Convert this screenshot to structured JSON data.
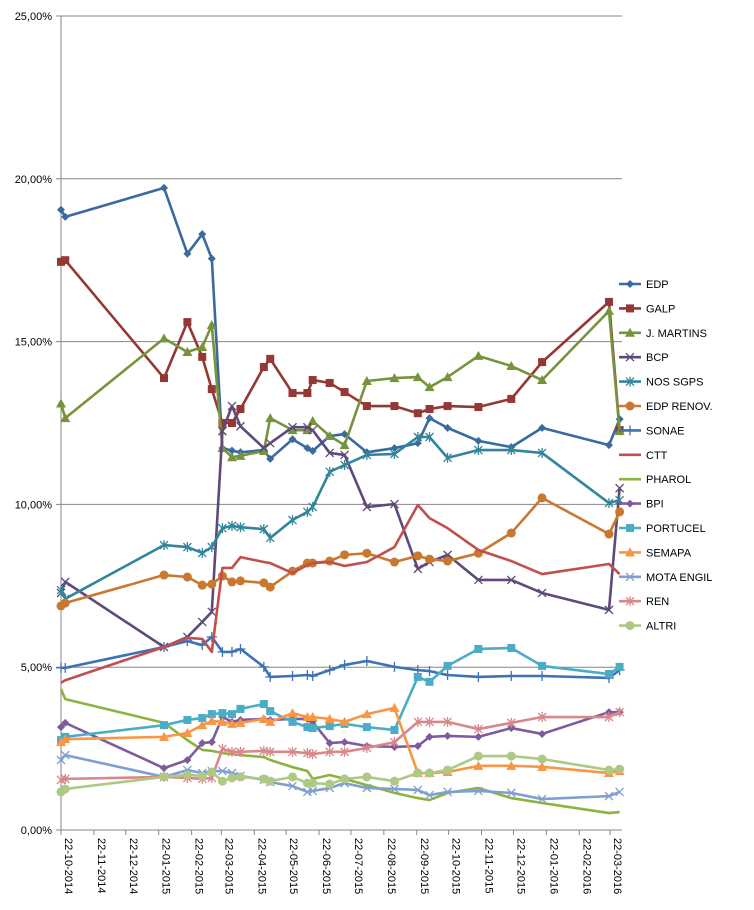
{
  "chart_data": {
    "type": "line",
    "title": "",
    "xlabel": "",
    "ylabel": "",
    "ylim": [
      0,
      25
    ],
    "grid": true,
    "legend_position": "right",
    "y_ticks": [
      0,
      5,
      10,
      15,
      20,
      25
    ],
    "y_tick_labels": [
      "0,00%",
      "5,00%",
      "10,00%",
      "15,00%",
      "20,00%",
      "25,00%"
    ],
    "x_tick_dates": [
      "2014-10-22",
      "2014-11-22",
      "2014-12-22",
      "2015-01-22",
      "2015-02-22",
      "2015-03-22",
      "2015-04-22",
      "2015-05-22",
      "2015-06-22",
      "2015-07-22",
      "2015-08-22",
      "2015-09-22",
      "2015-10-22",
      "2015-11-22",
      "2015-12-22",
      "2016-01-22",
      "2016-02-22",
      "2016-03-22"
    ],
    "x_tick_labels": [
      "22-10-2014",
      "22-11-2014",
      "22-12-2014",
      "22-01-2015",
      "22-02-2015",
      "22-03-2015",
      "22-04-2015",
      "22-05-2015",
      "22-06-2015",
      "22-07-2015",
      "22-08-2015",
      "22-09-2015",
      "22-10-2015",
      "22-11-2015",
      "22-12-2015",
      "22-01-2016",
      "22-02-2016",
      "22-03-2016"
    ],
    "x": [
      "2014-10-22",
      "2014-10-26",
      "2015-01-27",
      "2015-02-18",
      "2015-03-04",
      "2015-03-13",
      "2015-03-23",
      "2015-04-01",
      "2015-04-09",
      "2015-05-01",
      "2015-05-07",
      "2015-05-28",
      "2015-06-11",
      "2015-06-16",
      "2015-07-02",
      "2015-07-16",
      "2015-08-06",
      "2015-09-01",
      "2015-09-23",
      "2015-10-04",
      "2015-10-21",
      "2015-11-19",
      "2015-12-20",
      "2016-01-18",
      "2016-03-21",
      "2016-03-31"
    ],
    "series": [
      {
        "name": "EDP",
        "color": "#3a6aa0",
        "marker": "diamond",
        "values": [
          19.05,
          18.83,
          19.72,
          17.7,
          18.3,
          17.55,
          11.73,
          11.65,
          11.6,
          11.67,
          11.4,
          12.0,
          11.73,
          11.64,
          12.1,
          12.16,
          11.6,
          11.73,
          11.88,
          12.65,
          12.35,
          11.95,
          11.76,
          12.35,
          11.82,
          12.62
        ]
      },
      {
        "name": "GALP",
        "color": "#953735",
        "marker": "square",
        "values": [
          17.45,
          17.5,
          13.88,
          15.6,
          14.53,
          13.54,
          12.5,
          12.5,
          12.93,
          14.22,
          14.47,
          13.42,
          13.42,
          13.82,
          13.73,
          13.45,
          13.02,
          13.02,
          12.8,
          12.93,
          13.02,
          12.99,
          13.24,
          14.37,
          16.22,
          12.28
        ]
      },
      {
        "name": "J. MARTINS",
        "color": "#77933c",
        "marker": "triangle",
        "values": [
          13.1,
          12.65,
          15.1,
          14.68,
          14.83,
          15.51,
          11.73,
          11.45,
          11.49,
          11.64,
          12.65,
          12.28,
          12.28,
          12.56,
          12.1,
          11.82,
          13.79,
          13.88,
          13.91,
          13.6,
          13.91,
          14.56,
          14.25,
          13.82,
          15.94,
          12.25
        ]
      },
      {
        "name": "BCP",
        "color": "#5f497a",
        "marker": "x",
        "values": [
          7.28,
          7.62,
          5.62,
          5.93,
          6.39,
          6.7,
          12.25,
          13.02,
          12.4,
          11.73,
          11.88,
          12.37,
          12.37,
          12.28,
          11.58,
          11.52,
          9.92,
          10.01,
          8.02,
          8.23,
          8.45,
          7.68,
          7.68,
          7.28,
          6.76,
          10.5
        ]
      },
      {
        "name": "NOS SGPS",
        "color": "#31859c",
        "marker": "asterisk",
        "values": [
          7.37,
          7.1,
          8.75,
          8.69,
          8.51,
          8.69,
          9.27,
          9.34,
          9.3,
          9.24,
          8.97,
          9.52,
          9.77,
          9.92,
          11.0,
          11.21,
          11.52,
          11.55,
          12.07,
          12.07,
          11.43,
          11.67,
          11.67,
          11.58,
          10.04,
          10.13
        ]
      },
      {
        "name": "EDP RENOV.",
        "color": "#c8782f",
        "marker": "circle",
        "values": [
          6.88,
          6.97,
          7.83,
          7.77,
          7.52,
          7.55,
          7.8,
          7.62,
          7.65,
          7.59,
          7.46,
          7.95,
          8.2,
          8.2,
          8.26,
          8.45,
          8.5,
          8.23,
          8.42,
          8.32,
          8.26,
          8.5,
          9.12,
          10.2,
          9.09,
          9.77
        ]
      },
      {
        "name": "SONAE",
        "color": "#3d72b4",
        "marker": "plus",
        "values": [
          4.98,
          4.98,
          5.62,
          5.8,
          5.68,
          5.93,
          5.47,
          5.47,
          5.56,
          5.01,
          4.7,
          4.73,
          4.76,
          4.73,
          4.91,
          5.07,
          5.19,
          5.01,
          4.91,
          4.88,
          4.76,
          4.7,
          4.73,
          4.73,
          4.67,
          4.91
        ]
      },
      {
        "name": "CTT",
        "color": "#c0504d",
        "marker": "none",
        "values": [
          4.52,
          4.6,
          5.62,
          5.9,
          5.87,
          5.47,
          8.05,
          8.05,
          8.38,
          8.23,
          8.2,
          7.89,
          8.14,
          8.2,
          8.23,
          8.11,
          8.23,
          8.69,
          9.98,
          9.58,
          9.27,
          8.6,
          8.26,
          7.86,
          8.17,
          7.86
        ]
      },
      {
        "name": "PHAROL",
        "color": "#8db33f",
        "marker": "none",
        "values": [
          4.33,
          4.02,
          3.29,
          2.76,
          2.46,
          2.43,
          2.36,
          2.33,
          2.3,
          2.24,
          2.15,
          1.93,
          1.81,
          1.57,
          1.69,
          1.57,
          1.38,
          1.14,
          0.98,
          0.92,
          1.14,
          1.29,
          0.98,
          0.83,
          0.52,
          0.55
        ]
      },
      {
        "name": "BPI",
        "color": "#7f5a9f",
        "marker": "diamond",
        "values": [
          3.16,
          3.29,
          1.9,
          2.15,
          2.67,
          2.7,
          3.47,
          3.32,
          3.38,
          3.41,
          3.38,
          3.41,
          3.41,
          3.32,
          2.67,
          2.7,
          2.58,
          2.55,
          2.58,
          2.86,
          2.89,
          2.86,
          3.13,
          2.95,
          3.62,
          3.62
        ]
      },
      {
        "name": "PORTUCEL",
        "color": "#4bacc6",
        "marker": "square",
        "values": [
          2.76,
          2.86,
          3.22,
          3.38,
          3.44,
          3.56,
          3.59,
          3.56,
          3.72,
          3.87,
          3.65,
          3.32,
          3.16,
          3.13,
          3.19,
          3.26,
          3.16,
          3.07,
          4.7,
          4.55,
          5.04,
          5.56,
          5.59,
          5.04,
          4.79,
          5.01
        ]
      },
      {
        "name": "SEMAPA",
        "color": "#f79646",
        "marker": "triangle",
        "values": [
          2.7,
          2.79,
          2.86,
          2.98,
          3.22,
          3.35,
          3.32,
          3.26,
          3.29,
          3.41,
          3.32,
          3.59,
          3.47,
          3.47,
          3.41,
          3.32,
          3.56,
          3.75,
          1.75,
          1.75,
          1.78,
          1.97,
          1.97,
          1.94,
          1.75,
          1.81
        ]
      },
      {
        "name": "MOTA ENGIL",
        "color": "#7f9fd0",
        "marker": "x",
        "values": [
          2.15,
          2.3,
          1.63,
          1.84,
          1.75,
          1.81,
          1.81,
          1.75,
          1.66,
          1.54,
          1.47,
          1.35,
          1.17,
          1.2,
          1.29,
          1.44,
          1.29,
          1.26,
          1.23,
          1.07,
          1.17,
          1.2,
          1.14,
          0.95,
          1.04,
          1.17
        ]
      },
      {
        "name": "REN",
        "color": "#d9878a",
        "marker": "asterisk",
        "values": [
          1.54,
          1.57,
          1.63,
          1.6,
          1.57,
          1.6,
          2.49,
          2.4,
          2.4,
          2.43,
          2.4,
          2.4,
          2.36,
          2.33,
          2.4,
          2.4,
          2.52,
          2.7,
          3.32,
          3.32,
          3.32,
          3.1,
          3.29,
          3.47,
          3.47,
          3.62
        ]
      },
      {
        "name": "ALTRI",
        "color": "#adc985",
        "marker": "circle",
        "values": [
          1.17,
          1.26,
          1.63,
          1.69,
          1.66,
          1.78,
          1.5,
          1.6,
          1.63,
          1.57,
          1.5,
          1.63,
          1.44,
          1.44,
          1.41,
          1.57,
          1.63,
          1.5,
          1.75,
          1.75,
          1.84,
          2.27,
          2.27,
          2.18,
          1.84,
          1.87
        ]
      }
    ]
  }
}
